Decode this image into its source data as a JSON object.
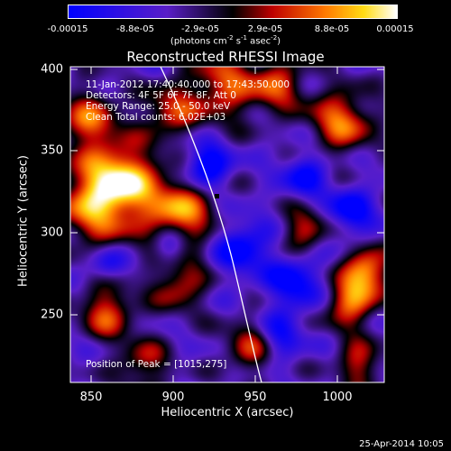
{
  "colorbar": {
    "tick_labels": [
      "-0.00015",
      "-8.8e-05",
      "-2.9e-05",
      "2.9e-05",
      "8.8e-05",
      "0.00015"
    ],
    "unit_prefix": "(photons cm",
    "unit_exp1": "-2",
    "unit_mid": " s",
    "unit_exp2": "-1",
    "unit_mid2": " asec",
    "unit_exp3": "-2",
    "unit_suffix": ")"
  },
  "title": "Reconstructed RHESSI Image",
  "info_lines": [
    "11-Jan-2012 17:40:40.000 to 17:43:50.000",
    "Detectors: 4F 5F 6F 7F 8F, Att 0",
    "Energy Range: 25.0 - 50.0 keV",
    "Clean    Total counts: 6.02E+03"
  ],
  "peak_text": "Position of Peak = [1015,275]",
  "x_axis": {
    "label": "Heliocentric X (arcsec)",
    "ticks": [
      "850",
      "900",
      "950",
      "1000"
    ],
    "range": [
      833,
      1025
    ]
  },
  "y_axis": {
    "label": "Heliocentric Y (arcsec)",
    "ticks": [
      "250",
      "300",
      "350",
      "400"
    ],
    "range": [
      207,
      400
    ]
  },
  "footer_date": "25-Apr-2014 10:05",
  "colors": {
    "background": "#000000",
    "text": "#ffffff",
    "limb": "#ffffff"
  }
}
